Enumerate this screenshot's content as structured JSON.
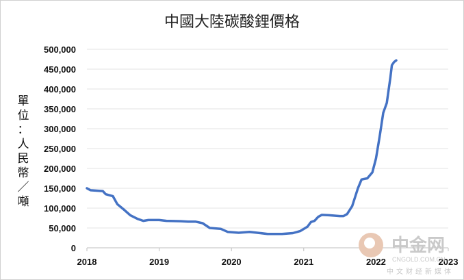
{
  "chart_data": {
    "type": "line",
    "title": "中國大陸碳酸鋰價格",
    "ylabel": "單位：人民幣／噸",
    "xlabel": "",
    "ylim": [
      0,
      500000
    ],
    "y_ticks": [
      "500,000",
      "450,000",
      "400,000",
      "350,000",
      "300,000",
      "250,000",
      "200,000",
      "150,000",
      "100,000",
      "50,000",
      "0"
    ],
    "x_ticks": [
      "2018",
      "2019",
      "2020",
      "2021",
      "2022",
      "2023"
    ],
    "grid": true,
    "legend": "none",
    "series_color": "#4472C4",
    "series": [
      {
        "values": [
          [
            2018.0,
            150000
          ],
          [
            2018.05,
            145000
          ],
          [
            2018.22,
            143000
          ],
          [
            2018.26,
            135000
          ],
          [
            2018.36,
            130000
          ],
          [
            2018.42,
            110000
          ],
          [
            2018.52,
            95000
          ],
          [
            2018.6,
            82000
          ],
          [
            2018.7,
            73000
          ],
          [
            2018.78,
            68000
          ],
          [
            2018.85,
            70000
          ],
          [
            2019.0,
            70000
          ],
          [
            2019.1,
            68000
          ],
          [
            2019.3,
            67000
          ],
          [
            2019.4,
            66000
          ],
          [
            2019.5,
            66000
          ],
          [
            2019.6,
            62000
          ],
          [
            2019.7,
            50000
          ],
          [
            2019.85,
            48000
          ],
          [
            2019.95,
            40000
          ],
          [
            2020.1,
            38000
          ],
          [
            2020.25,
            40000
          ],
          [
            2020.4,
            37000
          ],
          [
            2020.5,
            35000
          ],
          [
            2020.6,
            35000
          ],
          [
            2020.7,
            35000
          ],
          [
            2020.85,
            37000
          ],
          [
            2020.95,
            42000
          ],
          [
            2021.05,
            53000
          ],
          [
            2021.1,
            65000
          ],
          [
            2021.15,
            68000
          ],
          [
            2021.2,
            78000
          ],
          [
            2021.25,
            83000
          ],
          [
            2021.35,
            82000
          ],
          [
            2021.5,
            80000
          ],
          [
            2021.55,
            80000
          ],
          [
            2021.6,
            85000
          ],
          [
            2021.67,
            105000
          ],
          [
            2021.75,
            150000
          ],
          [
            2021.8,
            172000
          ],
          [
            2021.88,
            175000
          ],
          [
            2021.95,
            190000
          ],
          [
            2022.0,
            225000
          ],
          [
            2022.05,
            280000
          ],
          [
            2022.1,
            340000
          ],
          [
            2022.15,
            365000
          ],
          [
            2022.2,
            430000
          ],
          [
            2022.22,
            460000
          ],
          [
            2022.25,
            468000
          ],
          [
            2022.28,
            472000
          ]
        ]
      }
    ]
  },
  "watermark": {
    "brand": "中金网",
    "url": "CNGOLD.COM.CN",
    "tagline": "中文财经新媒体"
  }
}
